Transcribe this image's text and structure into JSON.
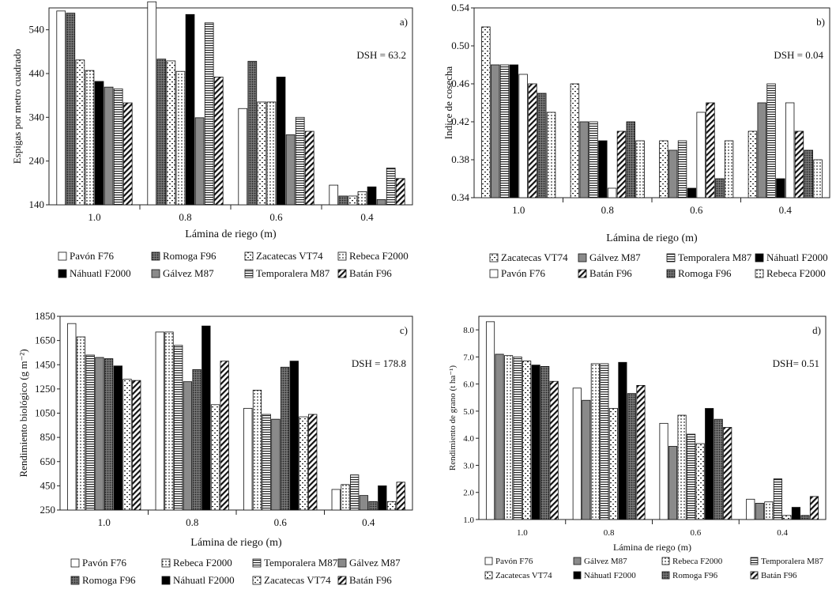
{
  "chart_data": [
    {
      "type": "bar",
      "panel_label": "a)",
      "annotation": "DSH = 63.2",
      "ylabel": "Espigas por metro cuadrado",
      "xlabel": "Lámina de riego (m)",
      "categories": [
        "1.0",
        "0.8",
        "0.6",
        "0.4"
      ],
      "ylim": [
        140,
        590
      ],
      "yticks": [
        140,
        240,
        340,
        440,
        540
      ],
      "legend": "bottom",
      "series": [
        {
          "name": "Pavón F76",
          "pattern": "white",
          "values": [
            583,
            604,
            360,
            185
          ]
        },
        {
          "name": "Romoga F96",
          "pattern": "dots-dense",
          "values": [
            578,
            473,
            468,
            160
          ]
        },
        {
          "name": "Zacatecas VT74",
          "pattern": "dots-sparse",
          "values": [
            471,
            469,
            375,
            160
          ]
        },
        {
          "name": "Rebeca F2000",
          "pattern": "dots",
          "values": [
            447,
            445,
            375,
            170
          ]
        },
        {
          "name": "Náhuatl F2000",
          "pattern": "black",
          "values": [
            422,
            575,
            432,
            181
          ]
        },
        {
          "name": "Gálvez M87",
          "pattern": "gray",
          "values": [
            409,
            339,
            300,
            152
          ]
        },
        {
          "name": "Temporalera M87",
          "pattern": "hlines",
          "values": [
            405,
            556,
            340,
            224
          ]
        },
        {
          "name": "Batán F96",
          "pattern": "diag",
          "values": [
            373,
            432,
            308,
            200
          ]
        }
      ]
    },
    {
      "type": "bar",
      "panel_label": "b)",
      "annotation": "DSH = 0.04",
      "ylabel": "Indice de cosecha",
      "xlabel": "Lámina de riego (m)",
      "categories": [
        "1.0",
        "0.8",
        "0.6",
        "0.4"
      ],
      "ylim": [
        0.34,
        0.54
      ],
      "yticks": [
        "0.34",
        "0.38",
        "0.42",
        "0.46",
        "0.50",
        "0.54"
      ],
      "legend": "bottom",
      "series": [
        {
          "name": "Zacatecas VT74",
          "pattern": "dots-sparse",
          "values": [
            0.52,
            0.46,
            0.4,
            0.41
          ]
        },
        {
          "name": "Gálvez M87",
          "pattern": "gray",
          "values": [
            0.48,
            0.42,
            0.39,
            0.44
          ]
        },
        {
          "name": "Temporalera M87",
          "pattern": "hlines",
          "values": [
            0.48,
            0.42,
            0.4,
            0.46
          ]
        },
        {
          "name": "Náhuatl F2000",
          "pattern": "black",
          "values": [
            0.48,
            0.4,
            0.35,
            0.36
          ]
        },
        {
          "name": "Pavón F76",
          "pattern": "white",
          "values": [
            0.47,
            0.35,
            0.43,
            0.44
          ]
        },
        {
          "name": "Batán F96",
          "pattern": "diag",
          "values": [
            0.46,
            0.41,
            0.44,
            0.41
          ]
        },
        {
          "name": "Romoga F96",
          "pattern": "dots-dense",
          "values": [
            0.45,
            0.42,
            0.36,
            0.39
          ]
        },
        {
          "name": "Rebeca F2000",
          "pattern": "dots",
          "values": [
            0.43,
            0.4,
            0.4,
            0.38
          ]
        }
      ]
    },
    {
      "type": "bar",
      "panel_label": "c)",
      "annotation": "DSH = 178.8",
      "ylabel": "Rendimiento biológico (g m⁻²)",
      "xlabel": "Lámina de riego (m)",
      "categories": [
        "1.0",
        "0.8",
        "0.6",
        "0.4"
      ],
      "ylim": [
        250,
        1850
      ],
      "yticks": [
        250,
        450,
        650,
        850,
        1050,
        1250,
        1450,
        1650,
        1850
      ],
      "legend": "bottom",
      "series": [
        {
          "name": "Pavón F76",
          "pattern": "white",
          "values": [
            1790,
            1720,
            1090,
            420
          ]
        },
        {
          "name": "Rebeca F2000",
          "pattern": "dots",
          "values": [
            1680,
            1720,
            1240,
            460
          ]
        },
        {
          "name": "Temporalera M87",
          "pattern": "hlines",
          "values": [
            1530,
            1610,
            1040,
            540
          ]
        },
        {
          "name": "Gálvez M87",
          "pattern": "gray",
          "values": [
            1510,
            1310,
            1000,
            370
          ]
        },
        {
          "name": "Romoga F96",
          "pattern": "dots-dense",
          "values": [
            1500,
            1410,
            1430,
            320
          ]
        },
        {
          "name": "Náhuatl F2000",
          "pattern": "black",
          "values": [
            1440,
            1770,
            1480,
            450
          ]
        },
        {
          "name": "Zacatecas VT74",
          "pattern": "dots-sparse",
          "values": [
            1330,
            1120,
            1020,
            320
          ]
        },
        {
          "name": "Batán F96",
          "pattern": "diag",
          "values": [
            1320,
            1480,
            1040,
            480
          ]
        }
      ]
    },
    {
      "type": "bar",
      "panel_label": "d)",
      "annotation": "DSH= 0.51",
      "ylabel": "Rendimiento de grano (t ha⁻¹)",
      "xlabel": "Lámina de riego (m)",
      "categories": [
        "1.0",
        "0.8",
        "0.6",
        "0.4"
      ],
      "ylim": [
        1.0,
        8.5
      ],
      "yticks": [
        "1.0",
        "2.0",
        "3.0",
        "4.0",
        "5.0",
        "6.0",
        "7.0",
        "8.0"
      ],
      "legend": "bottom",
      "series": [
        {
          "name": "Pavón F76",
          "pattern": "white",
          "values": [
            8.3,
            5.85,
            4.55,
            1.75
          ]
        },
        {
          "name": "Gálvez M87",
          "pattern": "gray",
          "values": [
            7.1,
            5.4,
            3.7,
            1.6
          ]
        },
        {
          "name": "Rebeca F2000",
          "pattern": "dots",
          "values": [
            7.05,
            6.75,
            4.85,
            1.65
          ]
        },
        {
          "name": "Temporalera M87",
          "pattern": "hlines",
          "values": [
            7.0,
            6.75,
            4.15,
            2.5
          ]
        },
        {
          "name": "Zacatecas VT74",
          "pattern": "dots-sparse",
          "values": [
            6.85,
            5.1,
            3.8,
            1.15
          ]
        },
        {
          "name": "Náhuatl F2000",
          "pattern": "black",
          "values": [
            6.7,
            6.8,
            5.1,
            1.45
          ]
        },
        {
          "name": "Romoga F96",
          "pattern": "dots-dense",
          "values": [
            6.65,
            5.65,
            4.7,
            1.15
          ]
        },
        {
          "name": "Batán F96",
          "pattern": "diag",
          "values": [
            6.1,
            5.95,
            4.4,
            1.85
          ]
        }
      ]
    }
  ]
}
